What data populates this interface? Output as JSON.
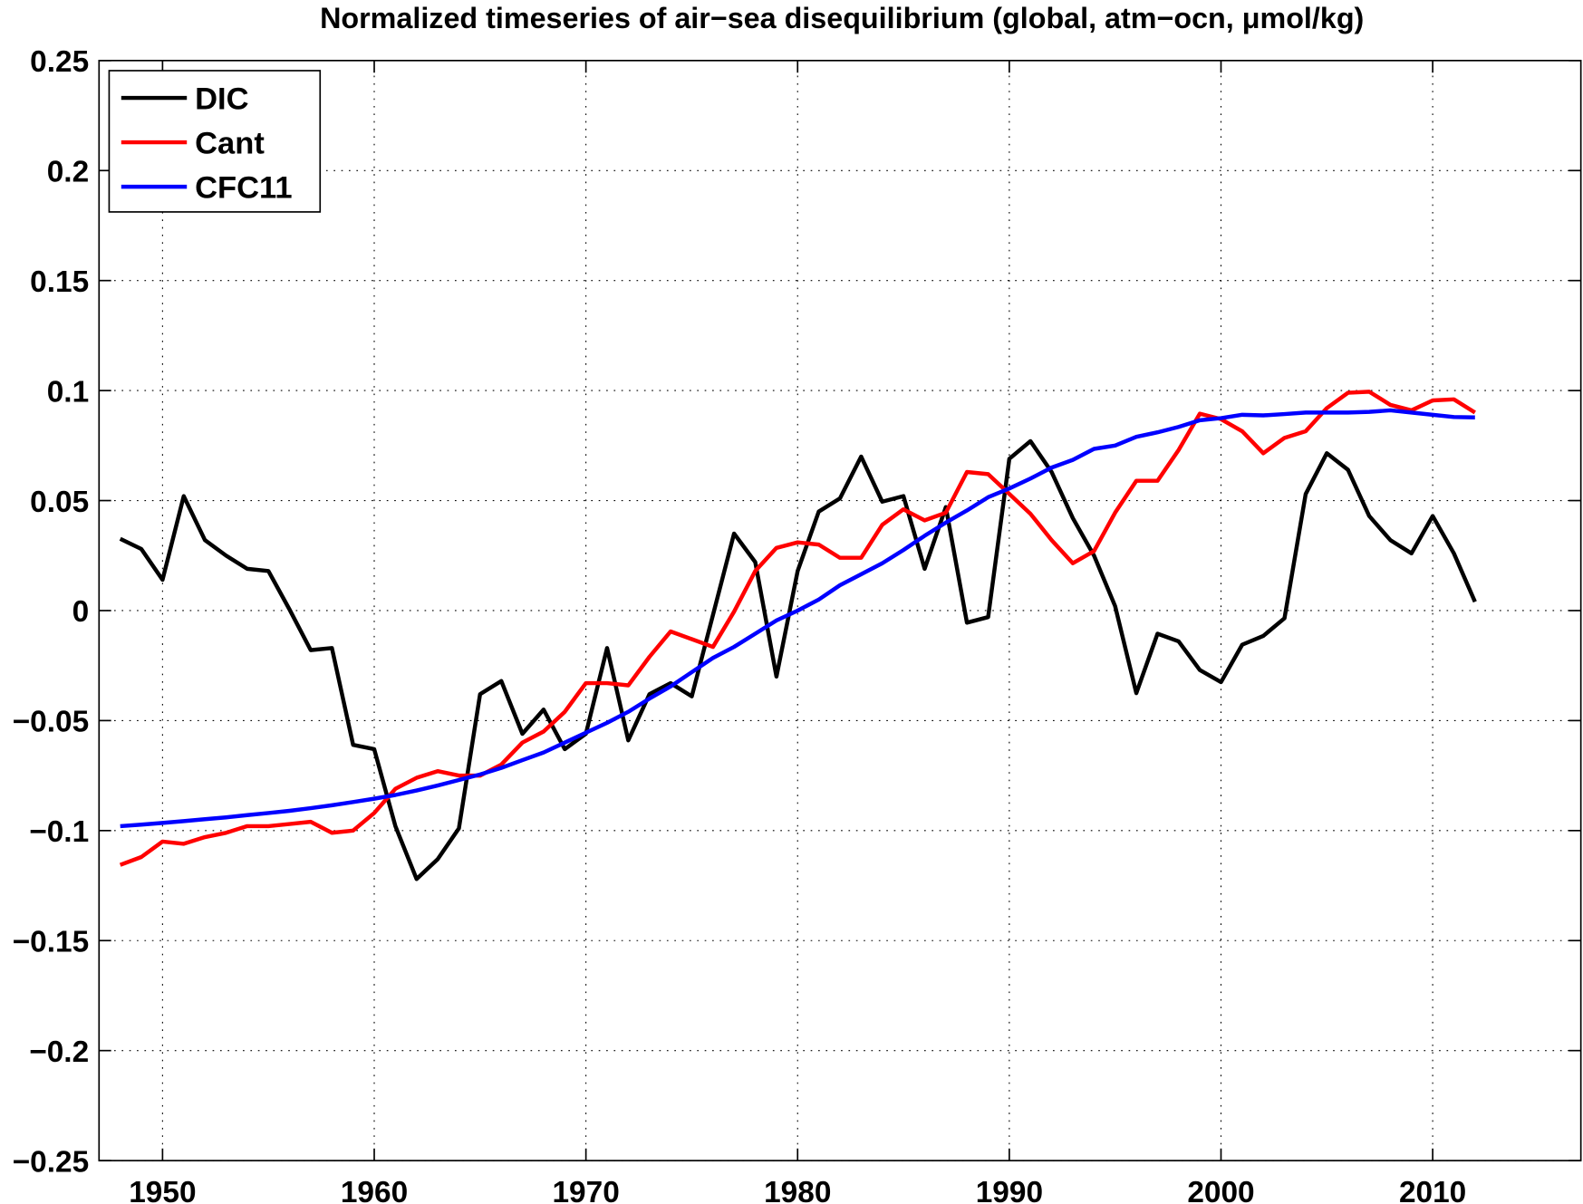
{
  "chart_data": {
    "type": "line",
    "title": "Normalized timeseries of air−sea disequilibrium  (global, atm−ocn, μmol/kg)",
    "xlabel": "",
    "ylabel": "",
    "xlim": [
      1947,
      2017
    ],
    "ylim": [
      -0.25,
      0.25
    ],
    "grid": true,
    "legend_position": "top-left",
    "x_ticks": [
      1950,
      1960,
      1970,
      1980,
      1990,
      2000,
      2010
    ],
    "y_ticks": [
      -0.25,
      -0.2,
      -0.15,
      -0.1,
      -0.05,
      0,
      0.05,
      0.1,
      0.15,
      0.2,
      0.25
    ],
    "x_tick_labels": [
      "1950",
      "1960",
      "1970",
      "1980",
      "1990",
      "2000",
      "2010"
    ],
    "y_tick_labels": [
      "−0.25",
      "−0.2",
      "−0.15",
      "−0.1",
      "−0.05",
      "0",
      "0.05",
      "0.1",
      "0.15",
      "0.2",
      "0.25"
    ],
    "x_start": 1948,
    "x_end": 2012,
    "series": [
      {
        "name": "DIC",
        "color": "#000000",
        "values": [
          0.0326,
          0.028,
          0.014,
          0.052,
          0.032,
          0.025,
          0.019,
          0.018,
          0.0005,
          -0.018,
          -0.017,
          -0.061,
          -0.063,
          -0.098,
          -0.122,
          -0.113,
          -0.099,
          -0.038,
          -0.032,
          -0.056,
          -0.045,
          -0.063,
          -0.056,
          -0.017,
          -0.059,
          -0.038,
          -0.033,
          -0.039,
          -0.002,
          0.035,
          0.022,
          -0.03,
          0.018,
          0.045,
          0.051,
          0.07,
          0.0495,
          0.052,
          0.019,
          0.047,
          -0.0055,
          -0.003,
          0.069,
          0.077,
          0.063,
          0.042,
          0.025,
          0.002,
          -0.0375,
          -0.0105,
          -0.014,
          -0.027,
          -0.0325,
          -0.0155,
          -0.0115,
          -0.0035,
          0.053,
          0.0715,
          0.064,
          0.043,
          0.032,
          0.026,
          0.043,
          0.026,
          0.004
        ]
      },
      {
        "name": "Cant",
        "color": "#ff0000",
        "values": [
          -0.1156,
          -0.112,
          -0.105,
          -0.106,
          -0.103,
          -0.101,
          -0.098,
          -0.098,
          -0.097,
          -0.096,
          -0.101,
          -0.1,
          -0.092,
          -0.081,
          -0.076,
          -0.073,
          -0.075,
          -0.075,
          -0.07,
          -0.06,
          -0.055,
          -0.046,
          -0.033,
          -0.033,
          -0.034,
          -0.021,
          -0.0095,
          -0.013,
          -0.0165,
          -0.0005,
          0.018,
          0.0285,
          0.031,
          0.03,
          0.024,
          0.024,
          0.039,
          0.046,
          0.041,
          0.0445,
          0.063,
          0.062,
          0.053,
          0.044,
          0.032,
          0.0215,
          0.027,
          0.0445,
          0.059,
          0.059,
          0.073,
          0.0895,
          0.087,
          0.0815,
          0.0715,
          0.0785,
          0.0815,
          0.092,
          0.099,
          0.0995,
          0.0935,
          0.091,
          0.0955,
          0.096,
          0.09
        ]
      },
      {
        "name": "CFC11",
        "color": "#0000ff",
        "values": [
          -0.098,
          -0.0973,
          -0.0965,
          -0.0957,
          -0.0948,
          -0.094,
          -0.093,
          -0.092,
          -0.091,
          -0.0898,
          -0.0885,
          -0.087,
          -0.0855,
          -0.0838,
          -0.0818,
          -0.0795,
          -0.077,
          -0.0745,
          -0.0715,
          -0.068,
          -0.0645,
          -0.06,
          -0.0555,
          -0.051,
          -0.046,
          -0.04,
          -0.0345,
          -0.028,
          -0.0215,
          -0.0165,
          -0.0105,
          -0.0045,
          0.0,
          0.005,
          0.0115,
          0.0165,
          0.0215,
          0.0275,
          0.034,
          0.04,
          0.0455,
          0.0515,
          0.0555,
          0.06,
          0.065,
          0.0685,
          0.0735,
          0.075,
          0.079,
          0.081,
          0.0835,
          0.0865,
          0.0875,
          0.089,
          0.0887,
          0.0893,
          0.09,
          0.09,
          0.09,
          0.0903,
          0.091,
          0.09,
          0.089,
          0.088,
          0.0878
        ]
      }
    ]
  }
}
